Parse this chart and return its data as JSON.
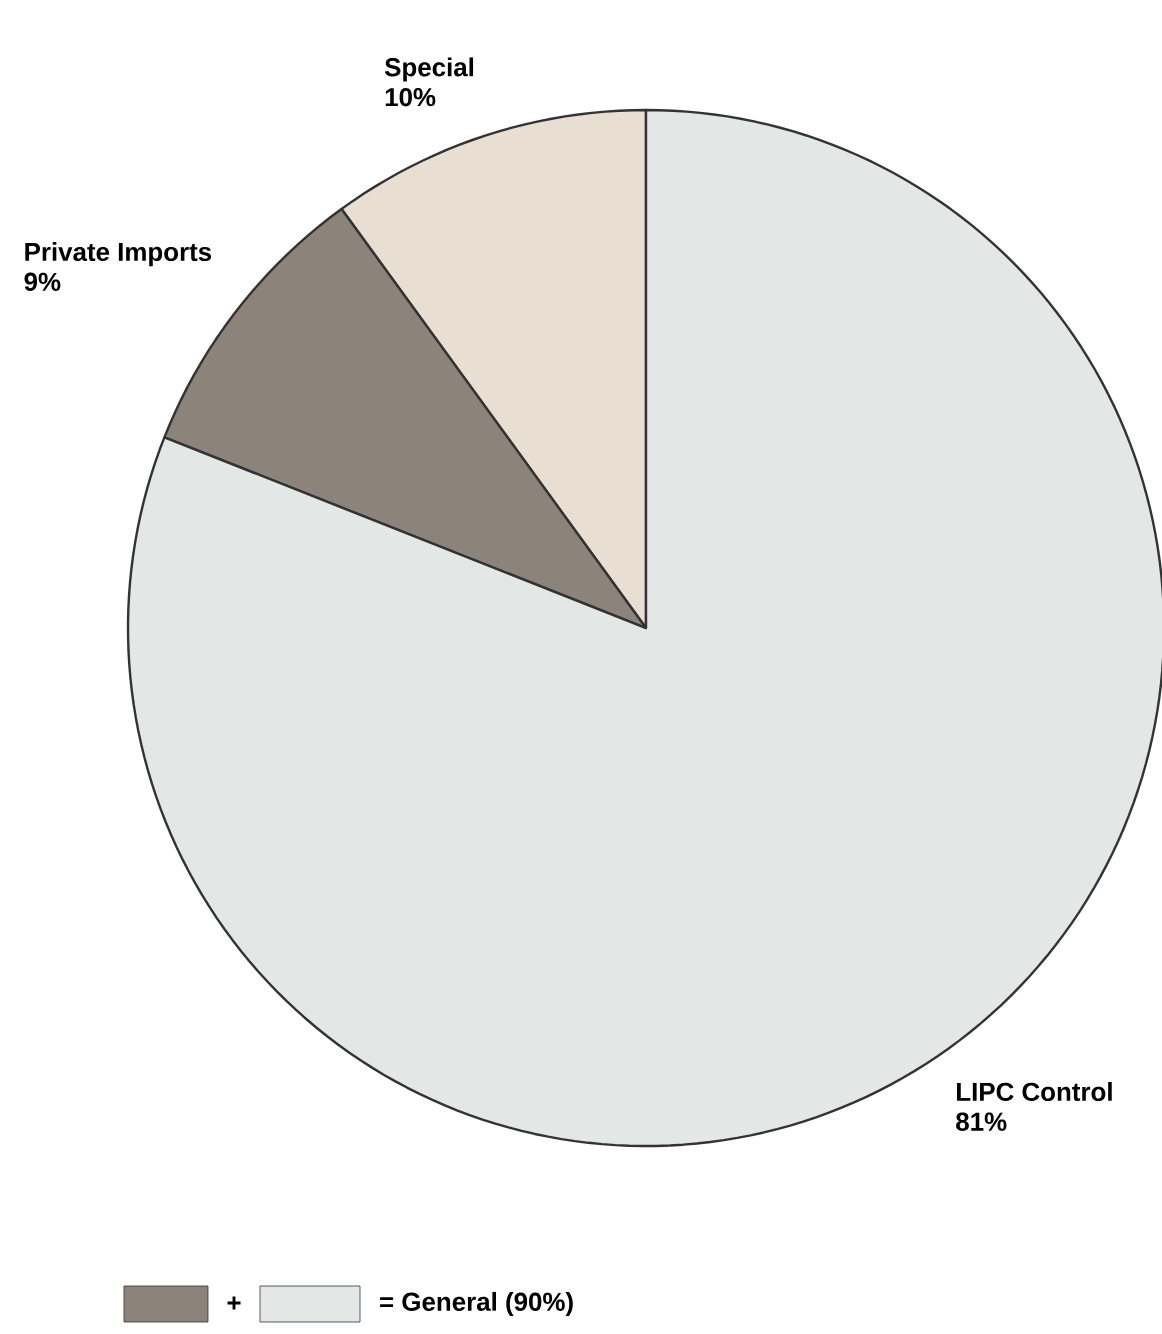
{
  "chart_data": {
    "type": "pie",
    "categories": [
      "Special",
      "Private Imports",
      "LIPC Control"
    ],
    "values": [
      10,
      9,
      81
    ],
    "value_labels": [
      "10%",
      "9%",
      "81%"
    ],
    "colors": [
      "#e8dfd2",
      "#8c837b",
      "#e3e7e6"
    ],
    "annotations": [
      "+",
      "= General (90%)"
    ]
  }
}
